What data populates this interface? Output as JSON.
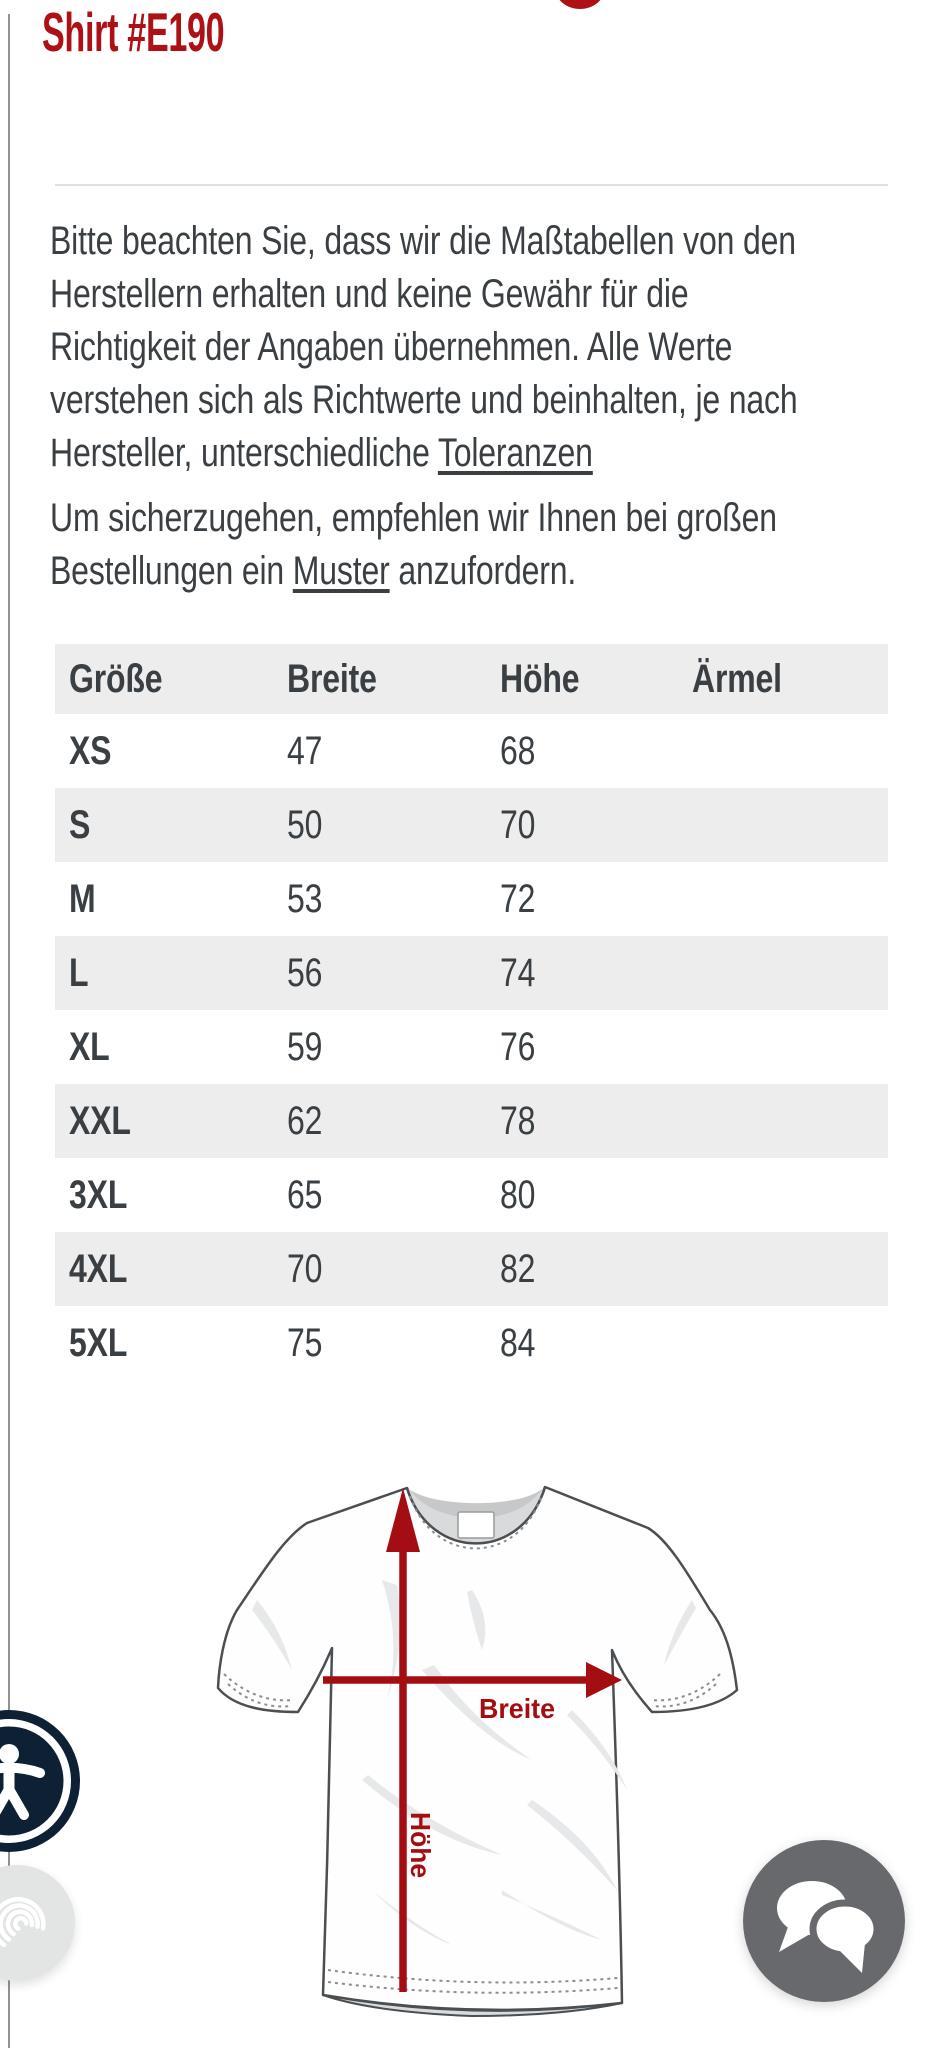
{
  "header": {
    "title": "Shirt #E190"
  },
  "disclaimer": {
    "lines": [
      "Bitte beachten Sie, dass wir die Maßtabellen von den",
      "Herstellern erhalten und keine Gewähr für die",
      "Richtigkeit der Angaben übernehmen. Alle Werte",
      "verstehen sich als Richtwerte und beinhalten, je nach"
    ],
    "last_line_prefix": "Hersteller, unterschiedliche ",
    "link_label": "Toleranzen"
  },
  "sample_note": {
    "line1": "Um sicherzugehen, empfehlen wir Ihnen bei großen",
    "line2_prefix": "Bestellungen ein ",
    "link_label": "Muster",
    "line2_suffix": " anzufordern."
  },
  "size_table": {
    "columns": [
      "Größe",
      "Breite",
      "Höhe",
      "Ärmel"
    ],
    "rows": [
      {
        "size": "XS",
        "breite": "47",
        "hoehe": "68",
        "aermel": ""
      },
      {
        "size": "S",
        "breite": "50",
        "hoehe": "70",
        "aermel": ""
      },
      {
        "size": "M",
        "breite": "53",
        "hoehe": "72",
        "aermel": ""
      },
      {
        "size": "L",
        "breite": "56",
        "hoehe": "74",
        "aermel": ""
      },
      {
        "size": "XL",
        "breite": "59",
        "hoehe": "76",
        "aermel": ""
      },
      {
        "size": "XXL",
        "breite": "62",
        "hoehe": "78",
        "aermel": ""
      },
      {
        "size": "3XL",
        "breite": "65",
        "hoehe": "80",
        "aermel": ""
      },
      {
        "size": "4XL",
        "breite": "70",
        "hoehe": "82",
        "aermel": ""
      },
      {
        "size": "5XL",
        "breite": "75",
        "hoehe": "84",
        "aermel": ""
      }
    ]
  },
  "diagram": {
    "width_label": "Breite",
    "height_label": "Höhe"
  },
  "icons": {
    "accessibility": "accessibility-person-icon",
    "fingerprint": "fingerprint-icon",
    "chat": "chat-bubbles-icon"
  },
  "colors": {
    "brand_red": "#ad1015",
    "diagram_red": "#a40e13",
    "text_color": "#3a3f43",
    "stripe": "#ededed",
    "navy": "#0e2134",
    "chat_gray": "#67696c",
    "fingerprint_bg": "#e3e5e4",
    "divider": "#e0e0e0",
    "outline": "#4b4f52"
  }
}
